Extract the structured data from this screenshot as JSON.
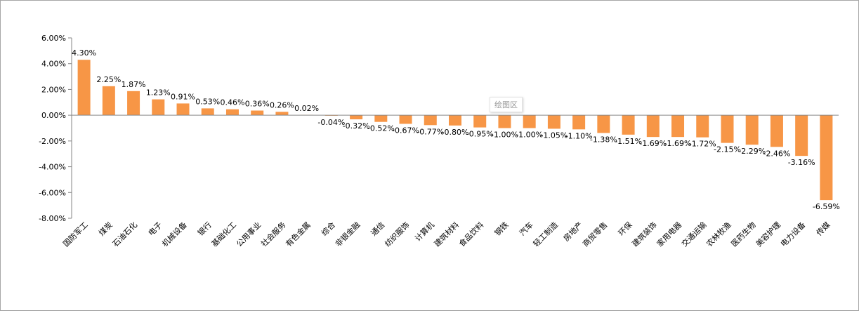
{
  "chart_data": {
    "type": "bar",
    "categories": [
      "国防军工",
      "煤炭",
      "石油石化",
      "电子",
      "机械设备",
      "银行",
      "基础化工",
      "公用事业",
      "社会服务",
      "有色金属",
      "综合",
      "非银金融",
      "通信",
      "纺织服饰",
      "计算机",
      "建筑材料",
      "食品饮料",
      "钢铁",
      "汽车",
      "轻工制造",
      "房地产",
      "商贸零售",
      "环保",
      "建筑装饰",
      "家用电器",
      "交通运输",
      "农林牧渔",
      "医药生物",
      "美容护理",
      "电力设备",
      "传媒"
    ],
    "values": [
      4.3,
      2.25,
      1.87,
      1.23,
      0.91,
      0.53,
      0.46,
      0.36,
      0.26,
      0.02,
      -0.04,
      -0.32,
      -0.52,
      -0.67,
      -0.77,
      -0.8,
      -0.95,
      -1.0,
      -1.0,
      -1.05,
      -1.1,
      -1.38,
      -1.51,
      -1.69,
      -1.69,
      -1.72,
      -2.15,
      -2.29,
      -2.46,
      -3.16,
      -6.59
    ],
    "value_labels": [
      "4.30%",
      "2.25%",
      "1.87%",
      "1.23%",
      "0.91%",
      "0.53%",
      "0.46%",
      "0.36%",
      "0.26%",
      "0.02%",
      "-0.04%",
      "-0.32%",
      "-0.52%",
      "-0.67%",
      "-0.77%",
      "-0.80%",
      "-0.95%",
      "-1.00%",
      "-1.00%",
      "-1.05%",
      "-1.10%",
      "-1.38%",
      "-1.51%",
      "-1.69%",
      "-1.69%",
      "-1.72%",
      "-2.15%",
      "-2.29%",
      "-2.46%",
      "-3.16%",
      "-6.59%"
    ],
    "yticks": [
      6,
      4,
      2,
      0,
      -2,
      -4,
      -6,
      -8
    ],
    "ytick_labels": [
      "6.00%",
      "4.00%",
      "2.00%",
      "0.00%",
      "-2.00%",
      "-4.00%",
      "-6.00%",
      "-8.00%"
    ],
    "ylim": [
      -8,
      6
    ],
    "title": "",
    "xlabel": "",
    "ylabel": "",
    "grid": false,
    "bar_color": "#f79646"
  },
  "ui": {
    "plot_area_label": "绘图区"
  }
}
